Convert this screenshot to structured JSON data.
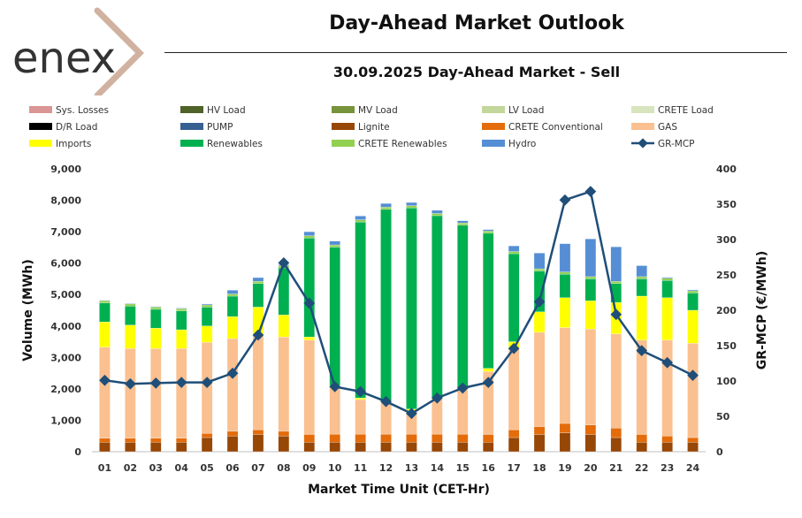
{
  "header": {
    "logo_text": "enex",
    "title": "Day-Ahead Market Outlook",
    "subtitle": "30.09.2025  Day-Ahead Market - Sell"
  },
  "chart_data": {
    "type": "bar",
    "stacked": true,
    "xlabel": "Market Time Unit (CET-Hr)",
    "ylabel": "Volume (MWh)",
    "y2label": "GR-MCP (€/MWh)",
    "ylim": [
      0,
      9000
    ],
    "y2lim": [
      0,
      400
    ],
    "yticks": [
      "0",
      "1,000",
      "2,000",
      "3,000",
      "4,000",
      "5,000",
      "6,000",
      "7,000",
      "8,000",
      "9,000"
    ],
    "y2ticks": [
      "0",
      "50",
      "100",
      "150",
      "200",
      "250",
      "300",
      "350",
      "400"
    ],
    "categories": [
      "01",
      "02",
      "03",
      "04",
      "05",
      "06",
      "07",
      "08",
      "09",
      "10",
      "11",
      "12",
      "13",
      "14",
      "15",
      "16",
      "17",
      "18",
      "19",
      "20",
      "21",
      "22",
      "23",
      "24"
    ],
    "legend": [
      {
        "name": "Sys. Losses",
        "color": "#d99694",
        "kind": "bar"
      },
      {
        "name": "HV Load",
        "color": "#4f6228",
        "kind": "bar"
      },
      {
        "name": "MV Load",
        "color": "#77933c",
        "kind": "bar"
      },
      {
        "name": "LV Load",
        "color": "#c3d69b",
        "kind": "bar"
      },
      {
        "name": "CRETE Load",
        "color": "#d7e4bd",
        "kind": "bar"
      },
      {
        "name": "D/R Load",
        "color": "#000000",
        "kind": "bar"
      },
      {
        "name": "PUMP",
        "color": "#376092",
        "kind": "bar"
      },
      {
        "name": "Lignite",
        "color": "#974706",
        "kind": "bar"
      },
      {
        "name": "CRETE Conventional",
        "color": "#e46c0a",
        "kind": "bar"
      },
      {
        "name": "GAS",
        "color": "#fac090",
        "kind": "bar"
      },
      {
        "name": "Imports",
        "color": "#ffff00",
        "kind": "bar"
      },
      {
        "name": "Renewables",
        "color": "#00b050",
        "kind": "bar"
      },
      {
        "name": "CRETE Renewables",
        "color": "#92d050",
        "kind": "bar"
      },
      {
        "name": "Hydro",
        "color": "#558ed5",
        "kind": "bar"
      },
      {
        "name": "GR-MCP",
        "color": "#1f4e79",
        "kind": "line"
      }
    ],
    "series": [
      {
        "name": "Lignite",
        "color": "#974706",
        "values": [
          300,
          300,
          300,
          300,
          450,
          500,
          550,
          500,
          300,
          300,
          300,
          300,
          300,
          300,
          300,
          300,
          450,
          550,
          600,
          550,
          450,
          300,
          300,
          300
        ]
      },
      {
        "name": "CRETE Conventional",
        "color": "#e46c0a",
        "values": [
          130,
          130,
          130,
          130,
          130,
          150,
          150,
          150,
          250,
          260,
          260,
          260,
          260,
          260,
          260,
          250,
          250,
          250,
          300,
          300,
          300,
          250,
          200,
          150
        ]
      },
      {
        "name": "GAS",
        "color": "#fac090",
        "values": [
          2900,
          2850,
          2850,
          2850,
          2900,
          2950,
          3000,
          3000,
          3000,
          1500,
          1100,
          1000,
          750,
          1100,
          1400,
          2000,
          2600,
          3000,
          3050,
          3050,
          3000,
          3000,
          3050,
          3000
        ]
      },
      {
        "name": "Imports",
        "color": "#ffff00",
        "values": [
          800,
          750,
          650,
          600,
          520,
          700,
          900,
          700,
          100,
          50,
          50,
          50,
          50,
          50,
          50,
          100,
          200,
          650,
          950,
          900,
          1000,
          1400,
          1350,
          1050
        ]
      },
      {
        "name": "Renewables",
        "color": "#00b050",
        "values": [
          600,
          600,
          600,
          600,
          600,
          650,
          750,
          1500,
          3150,
          4400,
          5600,
          6100,
          6400,
          5800,
          5200,
          4300,
          2800,
          1300,
          750,
          700,
          600,
          550,
          550,
          550
        ]
      },
      {
        "name": "CRETE Renewables",
        "color": "#92d050",
        "values": [
          70,
          70,
          70,
          70,
          70,
          70,
          70,
          70,
          70,
          70,
          70,
          70,
          70,
          70,
          70,
          70,
          70,
          70,
          70,
          70,
          70,
          70,
          70,
          70
        ]
      },
      {
        "name": "Hydro",
        "color": "#558ed5",
        "values": [
          20,
          20,
          20,
          20,
          30,
          120,
          120,
          30,
          130,
          120,
          120,
          120,
          100,
          100,
          70,
          50,
          180,
          500,
          900,
          1200,
          1100,
          350,
          30,
          30
        ]
      },
      {
        "name": "GR-MCP",
        "color": "#1f4e79",
        "axis": "y2",
        "values": [
          101,
          96,
          97,
          98,
          98,
          111,
          165,
          267,
          210,
          92,
          85,
          71,
          54,
          76,
          90,
          98,
          146,
          212,
          356,
          368,
          194,
          143,
          126,
          108
        ]
      }
    ]
  }
}
